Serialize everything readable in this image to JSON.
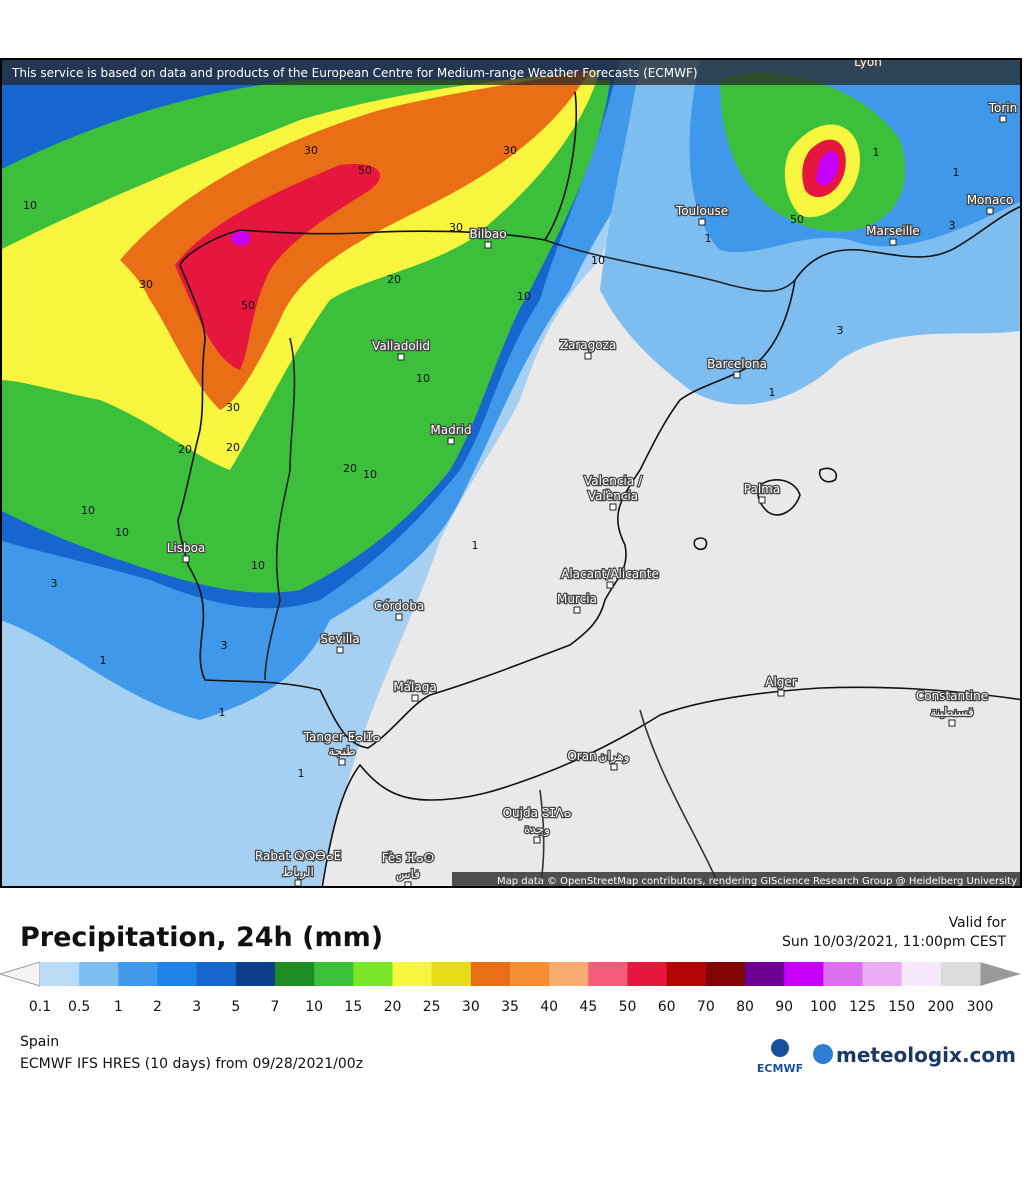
{
  "header": {
    "attribution": "This service is based on data and products of the European Centre for Medium-range Weather Forecasts (ECMWF)"
  },
  "map": {
    "cities": [
      "Lyon",
      "Torin",
      "Toulouse",
      "Marseille",
      "Monaco",
      "Bilbao",
      "Valladolid",
      "Zaragoza",
      "Barcelona",
      "Madrid",
      "Valencia /",
      "València",
      "Palma",
      "Lisboa",
      "Alacant/Alicante",
      "Murcia",
      "Córdoba",
      "Sevilla",
      "Málaga",
      "Alger",
      "Constantine",
      "قسنطينة",
      "Tanger ⵟⴰⵏⵊⴰ",
      "طنجة",
      "Oran",
      "وهران",
      "Oujda ⵓⵊⴷⴰ",
      "وجدة",
      "Rabat ⵕⵕⴱⴰⵟ",
      "الرباط",
      "Fès ⴼⴰⵙ",
      "فاس"
    ],
    "contour_labels": [
      "30",
      "50",
      "30",
      "10",
      "30",
      "50",
      "30",
      "20",
      "10",
      "10",
      "10",
      "30",
      "20",
      "20",
      "20",
      "10",
      "10",
      "10",
      "1",
      "10",
      "3",
      "3",
      "1",
      "1",
      "1",
      "50",
      "1",
      "1",
      "3",
      "3",
      "1",
      "1"
    ],
    "credit": "Map data © OpenStreetMap contributors, rendering GIScience Research Group @ Heidelberg University"
  },
  "legend": {
    "title": "Precipitation, 24h (mm)",
    "valid_label": "Valid for",
    "valid_time": "Sun 10/03/2021, 11:00pm CEST",
    "labels": [
      "0.1",
      "0.5",
      "1",
      "2",
      "3",
      "5",
      "7",
      "10",
      "15",
      "20",
      "25",
      "30",
      "35",
      "40",
      "45",
      "50",
      "60",
      "70",
      "80",
      "90",
      "100",
      "125",
      "150",
      "200",
      "300"
    ],
    "colors": [
      "#b9dbf6",
      "#7dbdf0",
      "#3f98ea",
      "#1f84ea",
      "#1766cf",
      "#0b3f8c",
      "#1e8c22",
      "#3cc03c",
      "#7ae62a",
      "#f7f53e",
      "#e4dc16",
      "#ea6e16",
      "#f58e34",
      "#f6ac70",
      "#f45a7a",
      "#e6163e",
      "#b40404",
      "#820404",
      "#6c0094",
      "#c800fa",
      "#dc6ef0",
      "#ecacf5",
      "#f7e8fb",
      "#dcdcdc"
    ]
  },
  "footer": {
    "region": "Spain",
    "model": "ECMWF IFS HRES (10 days) from 09/28/2021/00z",
    "ecmwf_logo": "ECMWF",
    "brand": "meteologix.com"
  }
}
